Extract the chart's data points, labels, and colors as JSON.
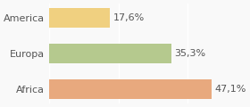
{
  "categories": [
    "America",
    "Europa",
    "Africa"
  ],
  "values": [
    17.6,
    35.3,
    47.1
  ],
  "labels": [
    "17,6%",
    "35,3%",
    "47,1%"
  ],
  "bar_colors": [
    "#f0d080",
    "#b5c98e",
    "#e8a97e"
  ],
  "background_color": "#f9f9f9",
  "xlim": [
    0,
    56
  ],
  "bar_height": 0.55,
  "label_fontsize": 8.0,
  "tick_fontsize": 8.0
}
